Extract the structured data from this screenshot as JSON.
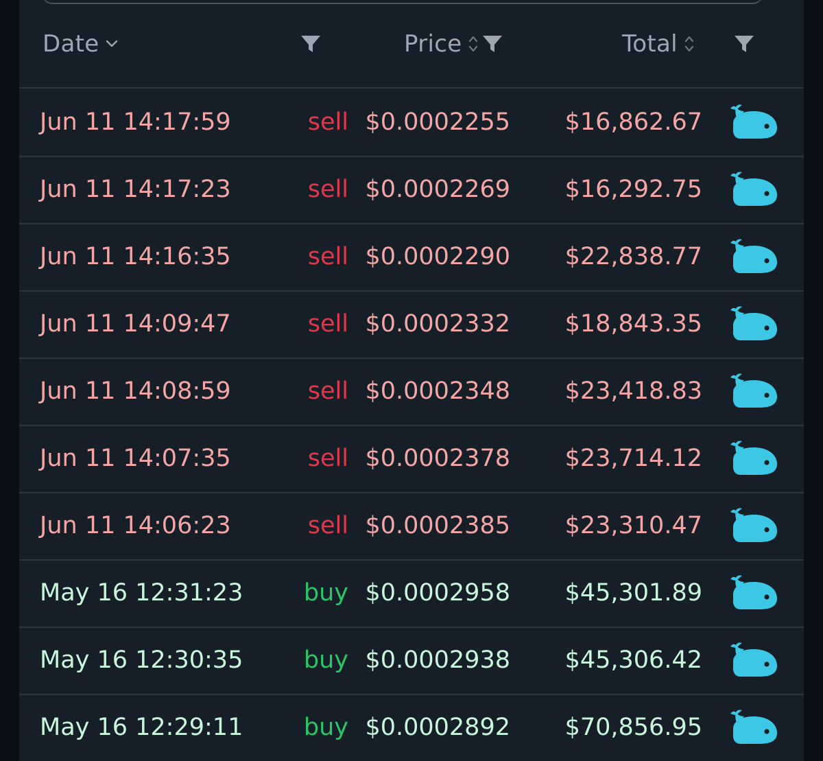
{
  "header": {
    "date_label": "Date",
    "price_label": "Price",
    "total_label": "Total"
  },
  "colors": {
    "sell_text": "#f4a6a6",
    "sell_type": "#e0384a",
    "buy_text": "#c9f5dd",
    "buy_type": "#2cc466",
    "whale_icon": "#3cc8e4"
  },
  "trades": [
    {
      "date": "Jun 11 14:17:59",
      "type": "sell",
      "price": "$0.0002255",
      "total": "$16,862.67",
      "icon": "whale-icon"
    },
    {
      "date": "Jun 11 14:17:23",
      "type": "sell",
      "price": "$0.0002269",
      "total": "$16,292.75",
      "icon": "whale-icon"
    },
    {
      "date": "Jun 11 14:16:35",
      "type": "sell",
      "price": "$0.0002290",
      "total": "$22,838.77",
      "icon": "whale-icon"
    },
    {
      "date": "Jun 11 14:09:47",
      "type": "sell",
      "price": "$0.0002332",
      "total": "$18,843.35",
      "icon": "whale-icon"
    },
    {
      "date": "Jun 11 14:08:59",
      "type": "sell",
      "price": "$0.0002348",
      "total": "$23,418.83",
      "icon": "whale-icon"
    },
    {
      "date": "Jun 11 14:07:35",
      "type": "sell",
      "price": "$0.0002378",
      "total": "$23,714.12",
      "icon": "whale-icon"
    },
    {
      "date": "Jun 11 14:06:23",
      "type": "sell",
      "price": "$0.0002385",
      "total": "$23,310.47",
      "icon": "whale-icon"
    },
    {
      "date": "May 16 12:31:23",
      "type": "buy",
      "price": "$0.0002958",
      "total": "$45,301.89",
      "icon": "whale-icon"
    },
    {
      "date": "May 16 12:30:35",
      "type": "buy",
      "price": "$0.0002938",
      "total": "$45,306.42",
      "icon": "whale-icon"
    },
    {
      "date": "May 16 12:29:11",
      "type": "buy",
      "price": "$0.0002892",
      "total": "$70,856.95",
      "icon": "whale-icon"
    }
  ]
}
